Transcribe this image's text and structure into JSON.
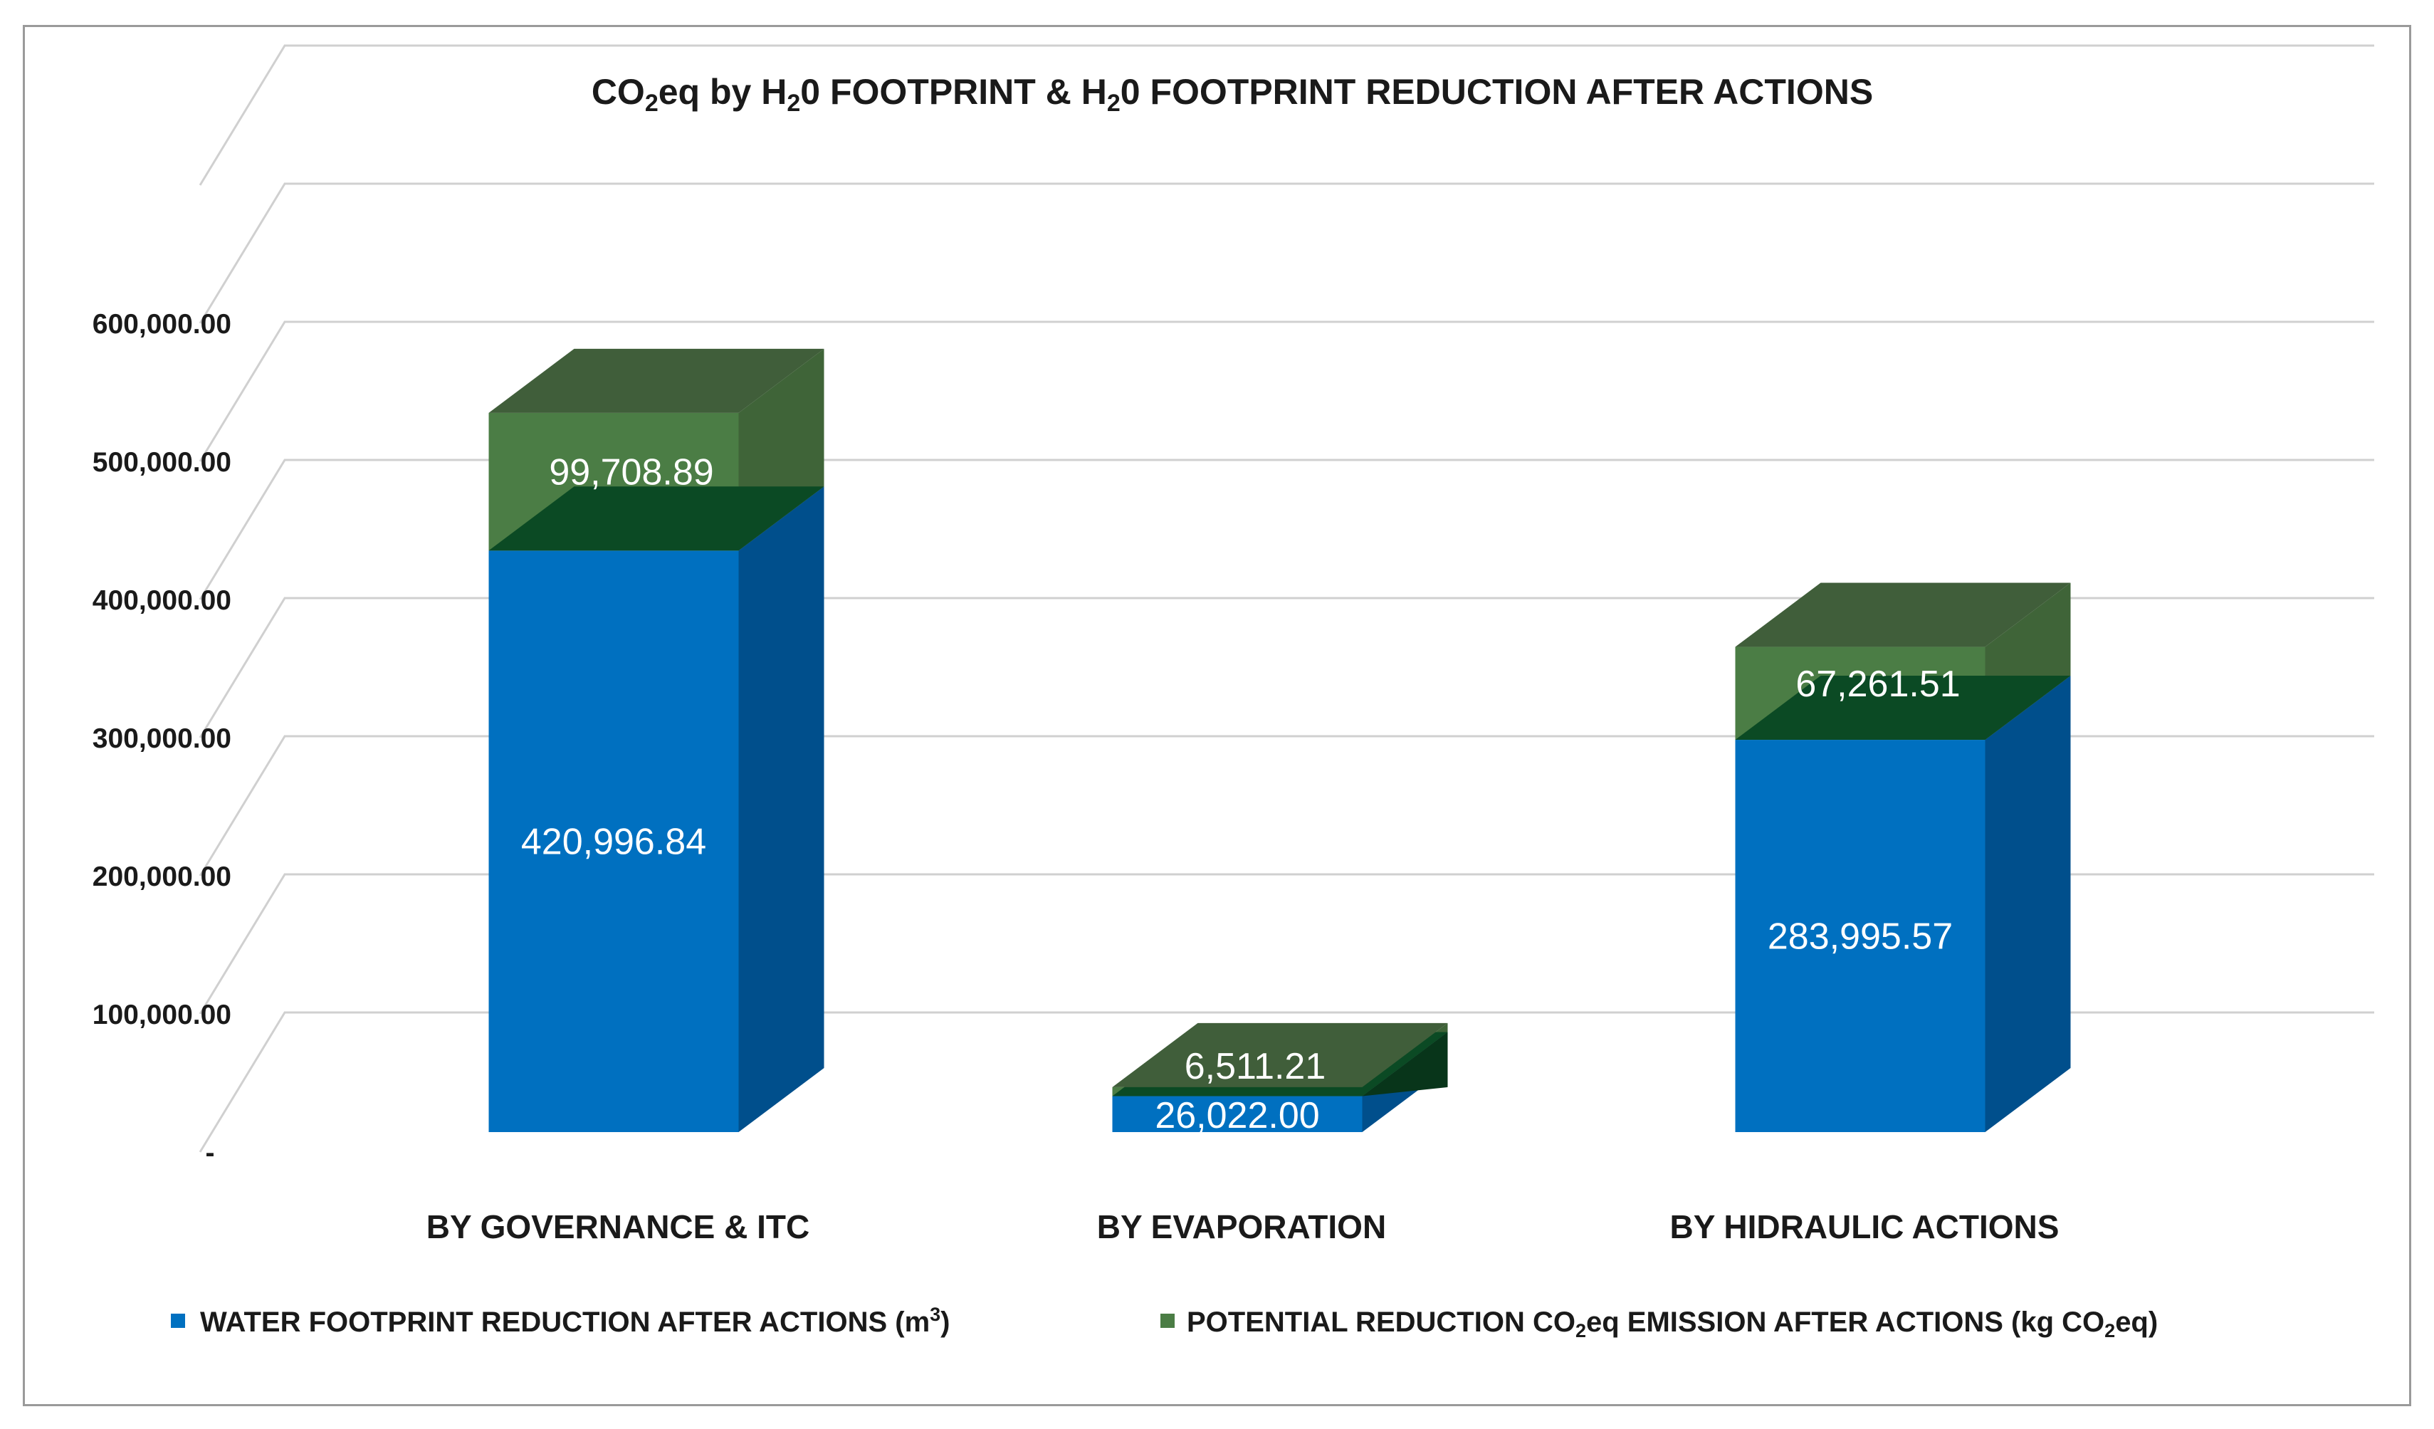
{
  "chart_data": {
    "type": "bar",
    "stacked": true,
    "three_d": true,
    "title_parts": [
      "CO",
      "2",
      "eq by H",
      "2",
      "0 FOOTPRINT & H",
      "2",
      "0 FOOTPRINT REDUCTION AFTER ACTIONS"
    ],
    "categories": [
      "BY GOVERNANCE & ITC",
      "BY EVAPORATION",
      "BY HIDRAULIC ACTIONS"
    ],
    "series": [
      {
        "name_parts": [
          "WATER FOOTPRINT REDUCTION AFTER ACTIONS (m",
          "3",
          ")"
        ],
        "values": [
          420996.84,
          26022.0,
          283995.57
        ],
        "labels": [
          "420,996.84",
          "26,022.00",
          "283,995.57"
        ],
        "color": "#0070c0",
        "side_color": "#004f8c",
        "top_color": "#0e5e9e"
      },
      {
        "name_parts": [
          "POTENTIAL REDUCTION CO",
          "2",
          "eq EMISSION AFTER ACTIONS (kg CO",
          "2",
          "eq)"
        ],
        "values": [
          99708.89,
          6511.21,
          67261.51
        ],
        "labels": [
          "99,708.89",
          "6,511.21",
          "67,261.51"
        ],
        "color": "#4b7d45",
        "side_color": "#3f6438",
        "top_color": "#405e3a",
        "front_inner_color": "#0b4a24",
        "side_inner_color": "#08351a"
      }
    ],
    "y_ticks": [
      0,
      100000,
      200000,
      300000,
      400000,
      500000,
      600000,
      700000
    ],
    "y_tick_labels": [
      "-",
      "100,000.00",
      "200,000.00",
      "300,000.00",
      "400,000.00",
      "500,000.00",
      "600,000.00",
      ""
    ],
    "ylim": [
      0,
      700000
    ],
    "grid": true,
    "legend_position": "bottom"
  }
}
